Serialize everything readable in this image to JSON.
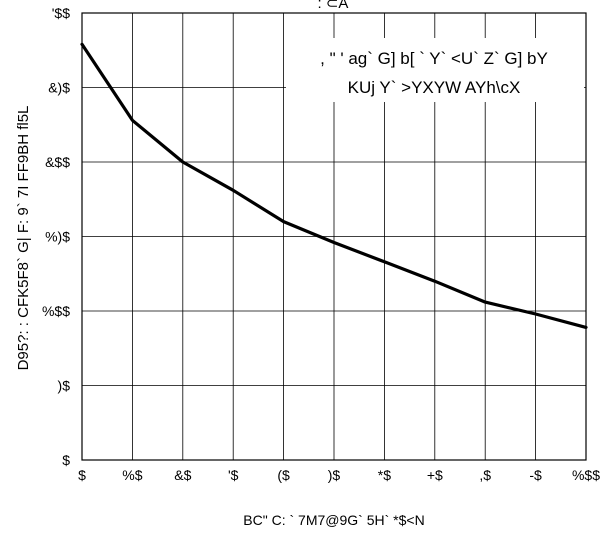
{
  "chart_data": {
    "type": "line",
    "title": ": ⊂A",
    "xlabel": "BC\" C: ` 7M7@9G` 5H` *$<N",
    "ylabel": "D95?: : CFK5F8` G| F: 9` 7I FF9BH fl5L",
    "x": [
      0,
      10,
      20,
      30,
      40,
      50,
      60,
      70,
      80,
      90,
      100
    ],
    "xticks": [
      "$",
      "%$",
      "&$",
      "'$",
      "($",
      ")$",
      "*$",
      "+$",
      ",$",
      "-$",
      "%$$"
    ],
    "yticks": [
      "$",
      ")$",
      "%$$",
      "%)$",
      "&$$",
      "&)$",
      "'$$"
    ],
    "xlim": [
      0,
      100
    ],
    "ylim": [
      0,
      300
    ],
    "grid": true,
    "legend_position": "top-right",
    "legend_lines": [
      ", \" ' ag` G] b[ ` Y` <U` Z` G] bY",
      "KUj Y` >YXYW AYh\\cX"
    ],
    "series": [
      {
        "color": "#000000",
        "values": [
          279,
          228,
          200,
          181,
          160,
          146,
          133,
          120,
          106,
          98,
          89
        ]
      }
    ]
  }
}
